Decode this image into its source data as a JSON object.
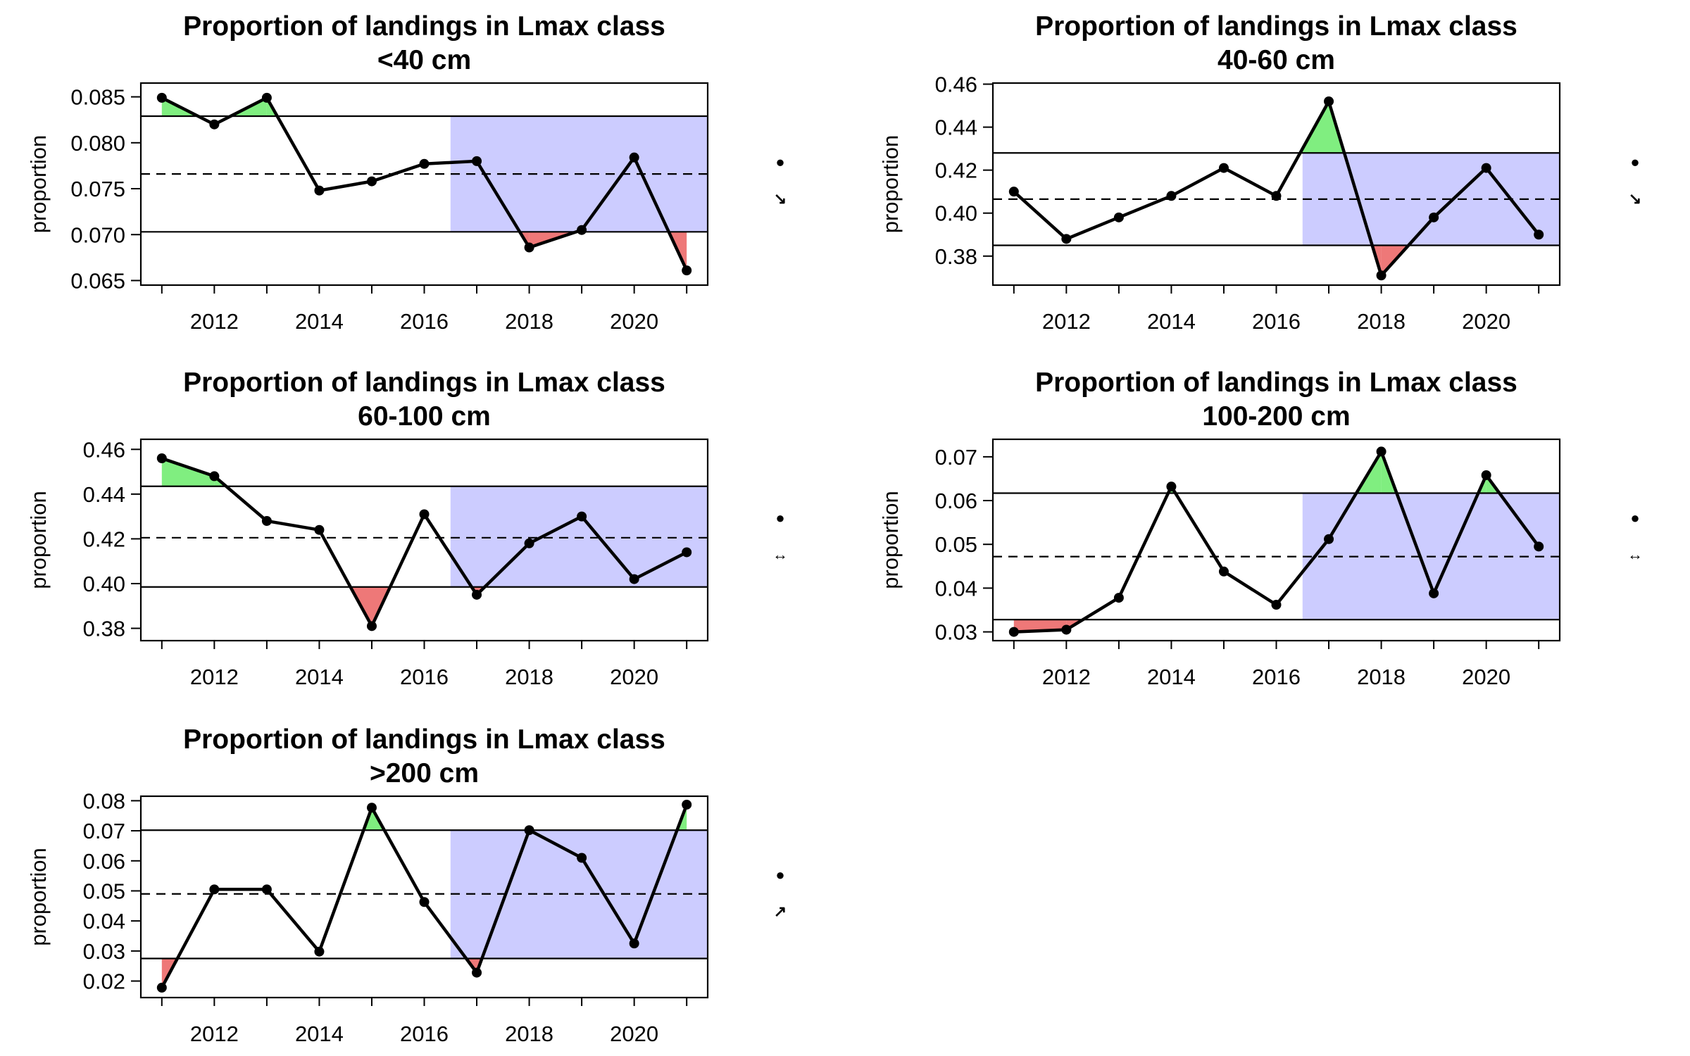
{
  "chart_data": [
    {
      "type": "line",
      "title": "Proportion of landings in Lmax class",
      "subtitle": "<40 cm",
      "ylabel": "proportion",
      "x": [
        2011,
        2012,
        2013,
        2014,
        2015,
        2016,
        2017,
        2018,
        2019,
        2020,
        2021
      ],
      "values": [
        0.0849,
        0.082,
        0.0849,
        0.0748,
        0.0758,
        0.0777,
        0.078,
        0.0686,
        0.0705,
        0.0784,
        0.0661
      ],
      "mean": 0.0766,
      "upper": 0.0829,
      "lower": 0.0703,
      "xlim": [
        2010.6,
        2021.4
      ],
      "ylim": [
        0.0645,
        0.0865
      ],
      "yticks": [
        "0.065",
        "0.070",
        "0.075",
        "0.080",
        "0.085"
      ],
      "xticks": [
        "2012",
        "2014",
        "2016",
        "2018",
        "2020"
      ],
      "trend_symbols": [
        "●",
        "↘"
      ],
      "colors": {
        "above": "#80ee80",
        "below": "#ee7878",
        "recent": "#ccccff"
      }
    },
    {
      "type": "line",
      "title": "Proportion of landings in Lmax class",
      "subtitle": "40-60 cm",
      "ylabel": "proportion",
      "x": [
        2011,
        2012,
        2013,
        2014,
        2015,
        2016,
        2017,
        2018,
        2019,
        2020,
        2021
      ],
      "values": [
        0.41,
        0.388,
        0.398,
        0.408,
        0.421,
        0.408,
        0.452,
        0.371,
        0.398,
        0.421,
        0.39
      ],
      "mean": 0.4065,
      "upper": 0.428,
      "lower": 0.385,
      "xlim": [
        2010.6,
        2021.4
      ],
      "ylim": [
        0.3665,
        0.4605
      ],
      "yticks": [
        "0.38",
        "0.40",
        "0.42",
        "0.44",
        "0.46"
      ],
      "xticks": [
        "2012",
        "2014",
        "2016",
        "2018",
        "2020"
      ],
      "trend_symbols": [
        "●",
        "↘"
      ],
      "colors": {
        "above": "#80ee80",
        "below": "#ee7878",
        "recent": "#ccccff"
      }
    },
    {
      "type": "line",
      "title": "Proportion of landings in Lmax class",
      "subtitle": "60-100 cm",
      "ylabel": "proportion",
      "x": [
        2011,
        2012,
        2013,
        2014,
        2015,
        2016,
        2017,
        2018,
        2019,
        2020,
        2021
      ],
      "values": [
        0.456,
        0.448,
        0.428,
        0.424,
        0.381,
        0.431,
        0.395,
        0.418,
        0.43,
        0.402,
        0.414
      ],
      "mean": 0.4205,
      "upper": 0.4435,
      "lower": 0.3985,
      "xlim": [
        2010.6,
        2021.4
      ],
      "ylim": [
        0.3745,
        0.4645
      ],
      "yticks": [
        "0.38",
        "0.40",
        "0.42",
        "0.44",
        "0.46"
      ],
      "xticks": [
        "2012",
        "2014",
        "2016",
        "2018",
        "2020"
      ],
      "trend_symbols": [
        "●",
        "↔"
      ],
      "colors": {
        "above": "#80ee80",
        "below": "#ee7878",
        "recent": "#ccccff"
      }
    },
    {
      "type": "line",
      "title": "Proportion of landings in Lmax class",
      "subtitle": "100-200 cm",
      "ylabel": "proportion",
      "x": [
        2011,
        2012,
        2013,
        2014,
        2015,
        2016,
        2017,
        2018,
        2019,
        2020,
        2021
      ],
      "values": [
        0.03,
        0.0305,
        0.0378,
        0.0632,
        0.0438,
        0.0362,
        0.0512,
        0.0712,
        0.0388,
        0.0658,
        0.0495
      ],
      "mean": 0.0472,
      "upper": 0.0617,
      "lower": 0.0328,
      "xlim": [
        2010.6,
        2021.4
      ],
      "ylim": [
        0.028,
        0.074
      ],
      "yticks": [
        "0.03",
        "0.04",
        "0.05",
        "0.06",
        "0.07"
      ],
      "xticks": [
        "2012",
        "2014",
        "2016",
        "2018",
        "2020"
      ],
      "trend_symbols": [
        "●",
        "↔"
      ],
      "colors": {
        "above": "#80ee80",
        "below": "#ee7878",
        "recent": "#ccccff"
      }
    },
    {
      "type": "line",
      "title": "Proportion of landings in Lmax class",
      "subtitle": ">200 cm",
      "ylabel": "proportion",
      "x": [
        2011,
        2012,
        2013,
        2014,
        2015,
        2016,
        2017,
        2018,
        2019,
        2020,
        2021
      ],
      "values": [
        0.0178,
        0.0505,
        0.0505,
        0.0298,
        0.0777,
        0.0463,
        0.0228,
        0.0702,
        0.061,
        0.0325,
        0.0787
      ],
      "mean": 0.049,
      "upper": 0.0702,
      "lower": 0.0275,
      "xlim": [
        2010.6,
        2021.4
      ],
      "ylim": [
        0.0145,
        0.0815
      ],
      "yticks": [
        "0.02",
        "0.03",
        "0.04",
        "0.05",
        "0.06",
        "0.07",
        "0.08"
      ],
      "xticks": [
        "2012",
        "2014",
        "2016",
        "2018",
        "2020"
      ],
      "trend_symbols": [
        "●",
        "↗"
      ],
      "colors": {
        "above": "#80ee80",
        "below": "#ee7878",
        "recent": "#ccccff"
      }
    }
  ]
}
